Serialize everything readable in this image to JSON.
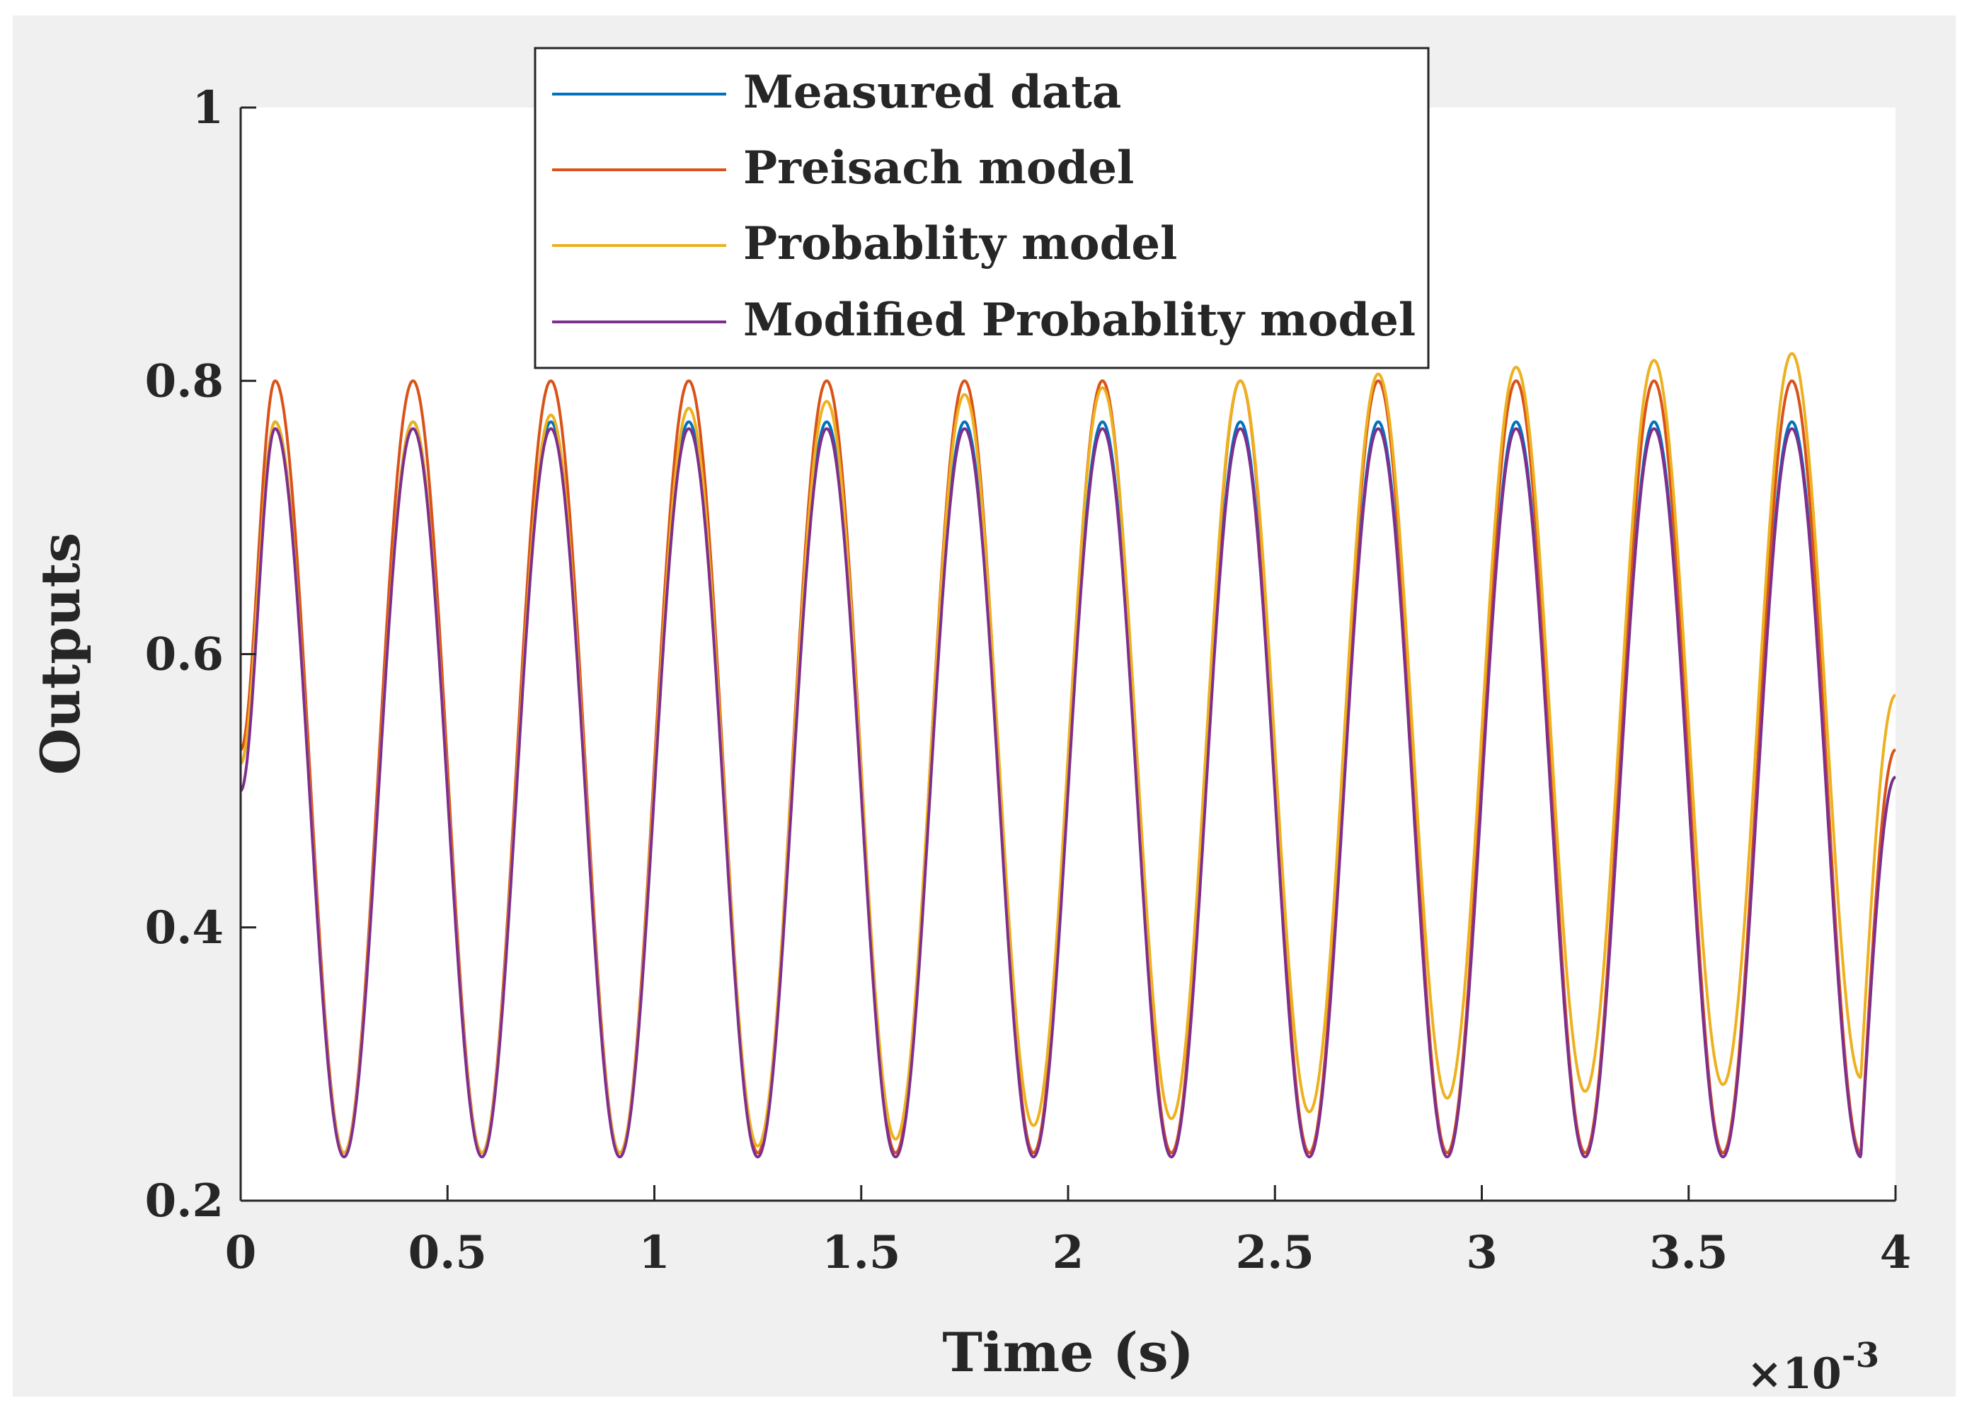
{
  "chart_data": {
    "type": "line",
    "title": "",
    "xlabel": "Time (s)",
    "ylabel": "Outputs",
    "x_exponent_label": "×10",
    "x_exponent_power": "-3",
    "xlim": [
      0,
      4
    ],
    "ylim": [
      0.2,
      1
    ],
    "xticks": [
      0,
      0.5,
      1,
      1.5,
      2,
      2.5,
      3,
      3.5,
      4
    ],
    "xtick_labels": [
      "0",
      "0.5",
      "1",
      "1.5",
      "2",
      "2.5",
      "3",
      "3.5",
      "4"
    ],
    "yticks": [
      0.2,
      0.4,
      0.6,
      0.8,
      1
    ],
    "ytick_labels": [
      "0.2",
      "0.4",
      "0.6",
      "0.8",
      "1"
    ],
    "grid": false,
    "legend_position": "top",
    "colors": {
      "background": "#f0f0f0",
      "axes_background": "#ffffff",
      "axis": "#262626"
    },
    "signal": {
      "period_ms": 0.3333,
      "first_peak_ms": 0.0833,
      "start_ms": 0,
      "end_ms": 4
    },
    "series": [
      {
        "name": "Measured data",
        "color": "#0072bd",
        "start_value": 0.52,
        "peaks": [
          0.77,
          0.77,
          0.77,
          0.77,
          0.77,
          0.77,
          0.77,
          0.77,
          0.77,
          0.77,
          0.77,
          0.77
        ],
        "troughs": [
          0.235,
          0.235,
          0.235,
          0.235,
          0.235,
          0.235,
          0.235,
          0.235,
          0.235,
          0.235,
          0.235,
          0.235
        ],
        "end_value": 0.51
      },
      {
        "name": "Preisach model",
        "color": "#d95319",
        "start_value": 0.53,
        "peaks": [
          0.8,
          0.8,
          0.8,
          0.8,
          0.8,
          0.8,
          0.8,
          0.8,
          0.8,
          0.8,
          0.8,
          0.8
        ],
        "troughs": [
          0.235,
          0.235,
          0.235,
          0.235,
          0.235,
          0.235,
          0.235,
          0.235,
          0.235,
          0.235,
          0.235,
          0.235
        ],
        "end_value": 0.53
      },
      {
        "name": "Probablity model",
        "color": "#edb120",
        "start_value": 0.52,
        "peaks": [
          0.77,
          0.77,
          0.775,
          0.78,
          0.785,
          0.79,
          0.795,
          0.8,
          0.805,
          0.81,
          0.815,
          0.82
        ],
        "troughs": [
          0.235,
          0.235,
          0.235,
          0.24,
          0.245,
          0.255,
          0.26,
          0.265,
          0.275,
          0.28,
          0.285,
          0.29
        ],
        "end_value": 0.57
      },
      {
        "name": "Modified Probablity model",
        "color": "#7e2f8e",
        "start_value": 0.5,
        "peaks": [
          0.765,
          0.765,
          0.765,
          0.765,
          0.765,
          0.765,
          0.765,
          0.765,
          0.765,
          0.765,
          0.765,
          0.765
        ],
        "troughs": [
          0.232,
          0.232,
          0.232,
          0.232,
          0.232,
          0.232,
          0.232,
          0.232,
          0.232,
          0.232,
          0.232,
          0.232
        ],
        "end_value": 0.51
      }
    ]
  }
}
